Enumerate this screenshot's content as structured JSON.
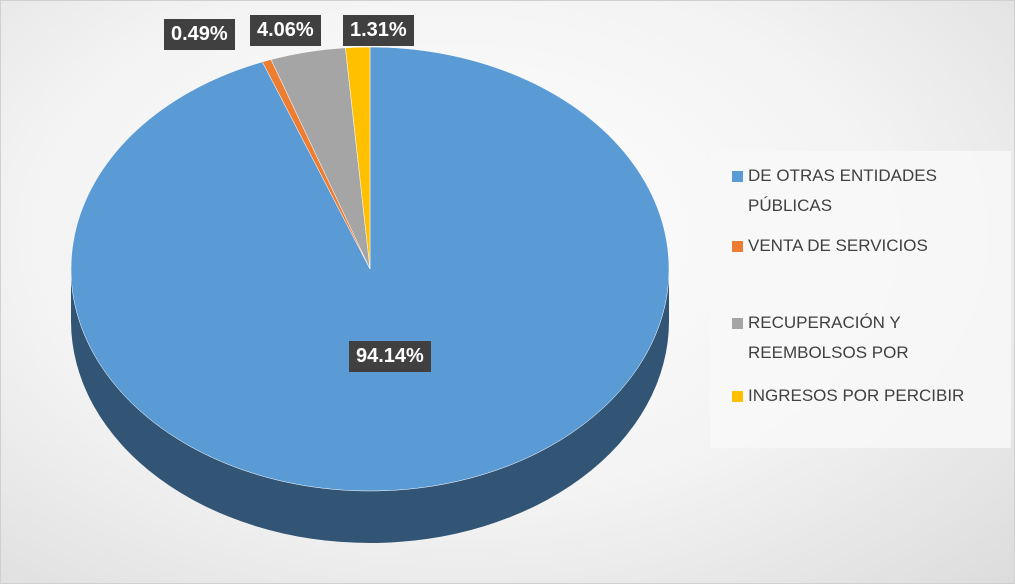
{
  "chart_data": {
    "type": "pie",
    "categories": [
      "DE OTRAS ENTIDADES PÚBLICAS",
      "VENTA DE SERVICIOS",
      "RECUPERACIÓN Y REEMBOLSOS POR",
      "INGRESOS POR PERCIBIR"
    ],
    "values": [
      94.14,
      0.49,
      4.06,
      1.31
    ],
    "value_labels": [
      "94.14%",
      "0.49%",
      "4.06%",
      "1.31%"
    ],
    "colors": [
      "#5b9bd5",
      "#ed7d31",
      "#a5a5a5",
      "#ffc000"
    ],
    "legend": "right"
  }
}
